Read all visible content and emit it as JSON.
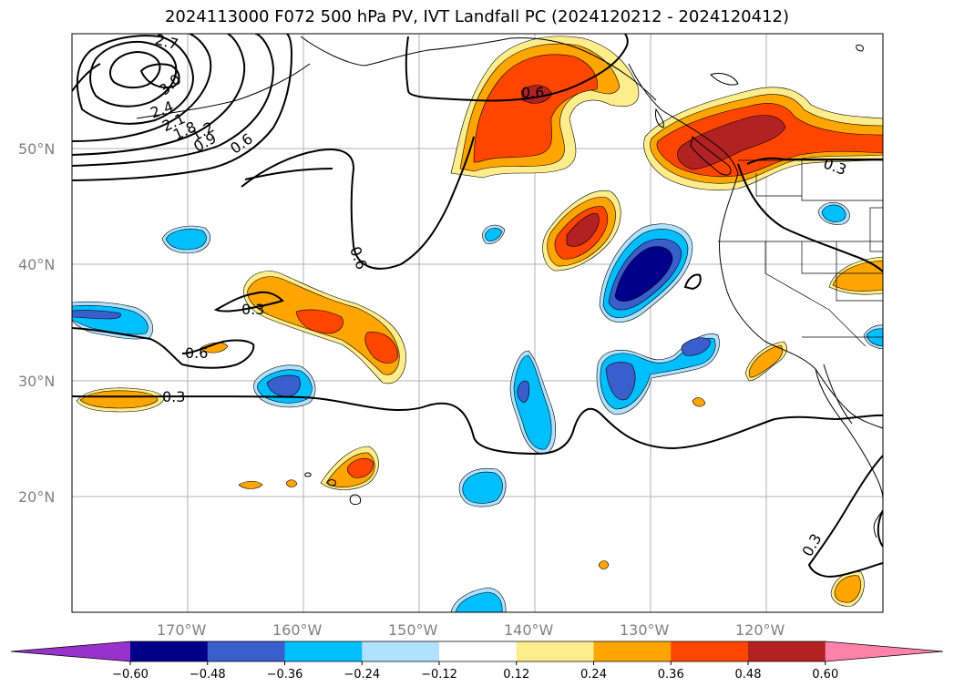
{
  "title": "2024113000 F072 500 hPa PV, IVT Landfall PC (2024120212 - 2024120412)",
  "lat_labels": [
    "50°N",
    "40°N",
    "30°N",
    "20°N"
  ],
  "lon_labels": [
    "170°W",
    "160°W",
    "150°W",
    "140°W",
    "130°W",
    "120°W"
  ],
  "colorbar": {
    "ticks": [
      "−0.60",
      "−0.48",
      "−0.36",
      "−0.24",
      "−0.12",
      "0.12",
      "0.24",
      "0.36",
      "0.48",
      "0.60"
    ],
    "colors": [
      "#9932cc",
      "#00008b",
      "#3a5fcd",
      "#00bfff",
      "#b0e2ff",
      "#ffffff",
      "#ffec8b",
      "#ffa500",
      "#ff4500",
      "#b22222",
      "#ff82ab"
    ]
  },
  "contour_labels": [
    {
      "id": "c27",
      "text": "2.7"
    },
    {
      "id": "c30",
      "text": "3.0"
    },
    {
      "id": "c24",
      "text": "2.4"
    },
    {
      "id": "c21",
      "text": "2.1"
    },
    {
      "id": "c18",
      "text": "1.8"
    },
    {
      "id": "c12",
      "text": "1.2"
    },
    {
      "id": "c09",
      "text": "0.9"
    },
    {
      "id": "c06a",
      "text": "0.6"
    },
    {
      "id": "c06b",
      "text": "0.6"
    },
    {
      "id": "c06c",
      "text": "0.6"
    },
    {
      "id": "c06d",
      "text": "0.6"
    },
    {
      "id": "c03a",
      "text": "0.3"
    },
    {
      "id": "c03b",
      "text": "0.3"
    },
    {
      "id": "c03c",
      "text": "0.3"
    },
    {
      "id": "c03d",
      "text": "0.3"
    }
  ]
}
